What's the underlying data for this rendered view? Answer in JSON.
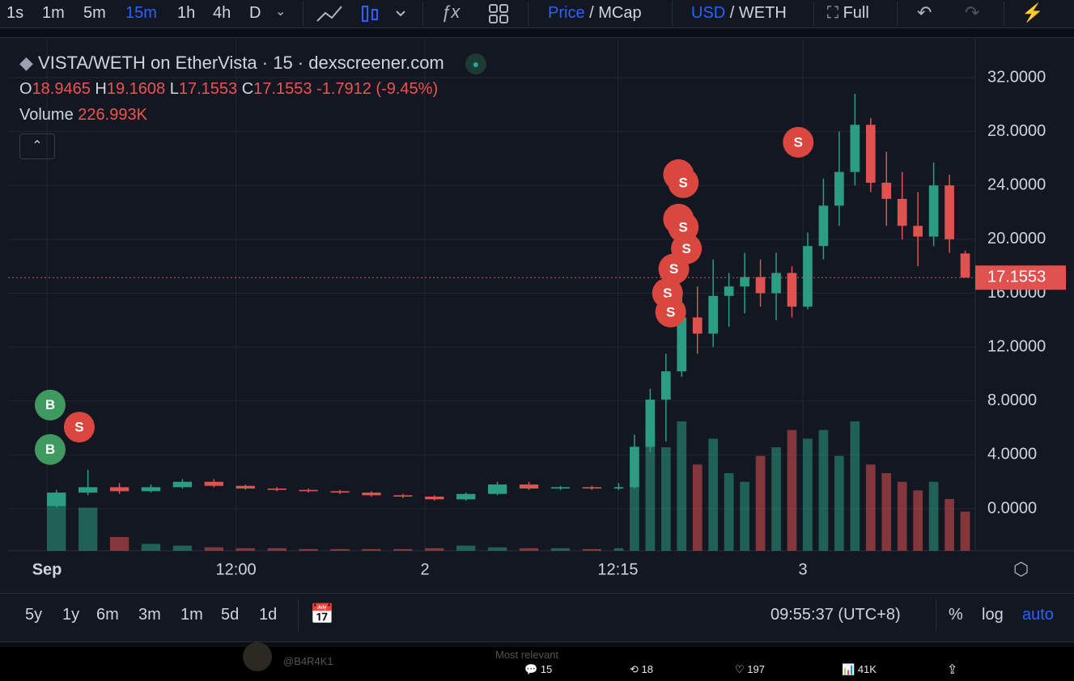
{
  "toolbar": {
    "intervals": [
      {
        "label": "1s"
      },
      {
        "label": "1m"
      },
      {
        "label": "5m"
      },
      {
        "label": "15m",
        "active": true
      },
      {
        "label": "1h"
      },
      {
        "label": "4h"
      },
      {
        "label": "D"
      }
    ],
    "price_toggle": [
      "Price",
      "/ MCap"
    ],
    "currency_toggle": [
      "USD",
      "/ WETH"
    ],
    "full": "Full"
  },
  "legend": {
    "title": "VISTA/WETH on EtherVista · 15 · dexscreener.com",
    "o_label": "O",
    "o": "18.9465",
    "h_label": "H",
    "h": "19.1608",
    "l_label": "L",
    "l": "17.1553",
    "c_label": "C",
    "c": "17.1553",
    "change": "-1.7912 (-9.45%)",
    "volume_label": "Volume",
    "volume": "226.993K"
  },
  "chart_data": {
    "type": "candlestick",
    "x": [
      0,
      2,
      4,
      6,
      8,
      10,
      12,
      14,
      16,
      18,
      20,
      22,
      24,
      26,
      28,
      30,
      32,
      34,
      36,
      37,
      38,
      39,
      40,
      41,
      42,
      43,
      44,
      45,
      46,
      47,
      48,
      49,
      50,
      51,
      52,
      53,
      54,
      55,
      56,
      57,
      58
    ],
    "open": [
      0.2,
      1.2,
      1.6,
      1.3,
      1.6,
      2.0,
      1.7,
      1.5,
      1.4,
      1.3,
      1.2,
      1.0,
      0.9,
      0.7,
      1.1,
      1.8,
      1.5,
      1.6,
      1.5,
      1.6,
      4.6,
      8.1,
      10.2,
      14.2,
      13.0,
      15.8,
      16.5,
      17.2,
      16.0,
      17.5,
      15.0,
      19.5,
      22.5,
      25.0,
      28.5,
      24.2,
      23.0,
      21.0,
      20.2,
      24.0,
      18.9465
    ],
    "high": [
      1.4,
      2.9,
      1.9,
      1.8,
      2.2,
      2.2,
      1.8,
      1.6,
      1.5,
      1.4,
      1.3,
      1.1,
      1.0,
      1.2,
      2.0,
      2.0,
      1.7,
      1.7,
      1.9,
      5.5,
      8.9,
      11.5,
      16.0,
      16.5,
      18.5,
      17.5,
      19.0,
      18.5,
      19.0,
      18.0,
      20.5,
      24.5,
      28.0,
      30.8,
      29.0,
      26.5,
      25.0,
      23.5,
      25.7,
      24.8,
      19.1608
    ],
    "low": [
      0.1,
      1.0,
      1.1,
      1.2,
      1.5,
      1.6,
      1.4,
      1.3,
      1.2,
      1.1,
      0.9,
      0.8,
      0.6,
      0.6,
      1.0,
      1.4,
      1.4,
      1.4,
      1.4,
      1.5,
      4.2,
      5.0,
      9.8,
      11.5,
      12.0,
      13.5,
      14.5,
      15.0,
      14.0,
      14.2,
      14.8,
      18.5,
      21.0,
      24.0,
      23.5,
      21.0,
      20.0,
      18.0,
      19.5,
      19.0,
      17.1553
    ],
    "close": [
      1.2,
      1.6,
      1.3,
      1.6,
      2.0,
      1.7,
      1.5,
      1.4,
      1.3,
      1.2,
      1.0,
      0.9,
      0.7,
      1.1,
      1.8,
      1.5,
      1.6,
      1.5,
      1.6,
      4.6,
      8.1,
      10.2,
      14.2,
      13.0,
      15.8,
      16.5,
      17.2,
      16.0,
      17.5,
      15.0,
      19.5,
      22.5,
      25.0,
      28.5,
      24.2,
      23.0,
      21.0,
      20.2,
      24.0,
      20.0,
      17.1553
    ],
    "volume": [
      300000,
      250000,
      80000,
      40000,
      30000,
      20000,
      15000,
      15000,
      10000,
      10000,
      10000,
      10000,
      15000,
      30000,
      20000,
      15000,
      15000,
      10000,
      15000,
      400000,
      700000,
      600000,
      750000,
      500000,
      650000,
      450000,
      400000,
      550000,
      600000,
      700000,
      650000,
      700000,
      550000,
      750000,
      500000,
      450000,
      400000,
      350000,
      400000,
      300000,
      226993
    ],
    "xlim": [
      -2.47,
      58.94
    ],
    "xticks": [
      {
        "value": 0,
        "label": "Sep"
      },
      {
        "value": 12,
        "label": "12:00"
      },
      {
        "value": 24,
        "label": "2"
      },
      {
        "value": 36.25,
        "label": "12:15"
      },
      {
        "value": 48,
        "label": "3"
      }
    ],
    "ylim": [
      -3.12,
      34.7
    ],
    "yticks": [
      {
        "value": 0,
        "label": "0.0000"
      },
      {
        "value": 4,
        "label": "4.0000"
      },
      {
        "value": 8,
        "label": "8.0000"
      },
      {
        "value": 12,
        "label": "12.0000"
      },
      {
        "value": 16,
        "label": "16.0000"
      },
      {
        "value": 20,
        "label": "20.0000"
      },
      {
        "value": 24,
        "label": "24.0000"
      },
      {
        "value": 28,
        "label": "28.0000"
      },
      {
        "value": 32,
        "label": "32.0000"
      }
    ],
    "last_price": 17.1553,
    "grid": true,
    "up_color": "#2a9d83",
    "down_color": "#e0524f",
    "markers": [
      {
        "label": "B",
        "x": 0.2,
        "y": 7.7,
        "color": "#3e9a5f"
      },
      {
        "label": "S",
        "x": 2.05,
        "y": 6.06,
        "color": "#d9473f"
      },
      {
        "label": "B",
        "x": 0.2,
        "y": 4.4,
        "color": "#3e9a5f"
      },
      {
        "label": "S",
        "x": 40.1,
        "y": 24.8,
        "color": "#d9473f"
      },
      {
        "label": "S",
        "x": 40.4,
        "y": 24.2,
        "color": "#d9473f"
      },
      {
        "label": "S",
        "x": 40.1,
        "y": 21.5,
        "color": "#d9473f"
      },
      {
        "label": "S",
        "x": 40.4,
        "y": 20.9,
        "color": "#d9473f"
      },
      {
        "label": "S",
        "x": 40.6,
        "y": 19.3,
        "color": "#d9473f"
      },
      {
        "label": "S",
        "x": 39.8,
        "y": 17.8,
        "color": "#d9473f"
      },
      {
        "label": "S",
        "x": 39.4,
        "y": 16.0,
        "color": "#d9473f"
      },
      {
        "label": "S",
        "x": 39.6,
        "y": 14.6,
        "color": "#d9473f"
      },
      {
        "label": "S",
        "x": 47.7,
        "y": 27.2,
        "color": "#d9473f"
      }
    ]
  },
  "range_bar": {
    "ranges": [
      "5y",
      "1y",
      "6m",
      "3m",
      "1m",
      "5d",
      "1d"
    ],
    "clock": "09:55:37 (UTC+8)",
    "percent": "%",
    "log": "log",
    "auto": "auto"
  },
  "tweet_bar": {
    "user": "@B4R4K1",
    "sort": "Most relevant",
    "replies": "15",
    "reposts": "18",
    "likes": "197",
    "views": "41K"
  }
}
